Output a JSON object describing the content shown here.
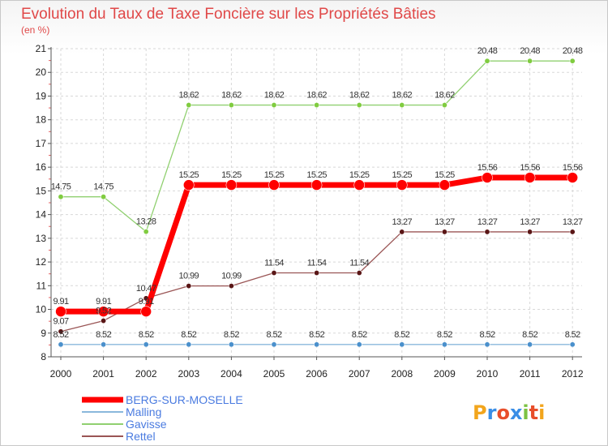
{
  "title": "Evolution du Taux de Taxe Foncière sur les Propriétés Bâties",
  "unit_label": "(en %)",
  "logo": {
    "letters": [
      "P",
      "r",
      "o",
      "x",
      "i",
      "t",
      "i"
    ],
    "colors": [
      "#f2a51c",
      "#3a8ee6",
      "#e84e2a",
      "#3a8ee6",
      "#7cc242",
      "#e84e2a",
      "#f2a51c"
    ]
  },
  "chart_data": {
    "type": "line",
    "title": "Evolution du Taux de Taxe Foncière sur les Propriétés Bâties",
    "ylabel": "(en %)",
    "ylim": [
      8,
      21
    ],
    "yticks": [
      8,
      9,
      10,
      11,
      12,
      13,
      14,
      15,
      16,
      17,
      18,
      19,
      20,
      21
    ],
    "x": [
      "2000",
      "2001",
      "2002",
      "2003",
      "2004",
      "2005",
      "2006",
      "2007",
      "2008",
      "2009",
      "2010",
      "2011",
      "2012"
    ],
    "grid": true,
    "legend_position": "bottom-left",
    "series": [
      {
        "name": "Gavisse",
        "color": "#90d070",
        "marker": "#80cc40",
        "width": 1.3,
        "radius": 3.2,
        "values": [
          14.75,
          14.75,
          13.28,
          18.62,
          18.62,
          18.62,
          18.62,
          18.62,
          18.62,
          18.62,
          20.48,
          20.48,
          20.48
        ],
        "labels": [
          "14.75",
          "14.75",
          "13.28",
          "18.62",
          "18.62",
          "18.62",
          "18.62",
          "18.62",
          "18.62",
          "18.62",
          "20.48",
          "20.48",
          "20.48"
        ]
      },
      {
        "name": "Rettel",
        "color": "#9a5555",
        "marker": "#5a1616",
        "width": 1.3,
        "radius": 3.2,
        "values": [
          9.07,
          9.52,
          10.47,
          10.99,
          10.99,
          11.54,
          11.54,
          11.54,
          13.27,
          13.27,
          13.27,
          13.27,
          13.27
        ],
        "labels": [
          "9.07",
          "9.52",
          "10.47",
          "10.99",
          "10.99",
          "11.54",
          "11.54",
          "11.54",
          "13.27",
          "13.27",
          "13.27",
          "13.27",
          "13.27"
        ]
      },
      {
        "name": "Malling",
        "color": "#8ab8dc",
        "marker": "#4a90cc",
        "width": 1.3,
        "radius": 3.2,
        "values": [
          8.52,
          8.52,
          8.52,
          8.52,
          8.52,
          8.52,
          8.52,
          8.52,
          8.52,
          8.52,
          8.52,
          8.52,
          8.52
        ],
        "labels": [
          "8.52",
          "8.52",
          "8.52",
          "8.52",
          "8.52",
          "8.52",
          "8.52",
          "8.52",
          "8.52",
          "8.52",
          "8.52",
          "8.52",
          "8.52"
        ]
      },
      {
        "name": "BERG-SUR-MOSELLE",
        "color": "#ff0000",
        "marker": "#ff0000",
        "width": 7,
        "radius": 6.5,
        "values": [
          9.91,
          9.91,
          9.91,
          15.25,
          15.25,
          15.25,
          15.25,
          15.25,
          15.25,
          15.25,
          15.56,
          15.56,
          15.56
        ],
        "labels": [
          "9.91",
          "9.91",
          "9.91",
          "15.25",
          "15.25",
          "15.25",
          "15.25",
          "15.25",
          "15.25",
          "15.25",
          "15.56",
          "15.56",
          "15.56"
        ]
      }
    ],
    "legend": [
      {
        "name": "BERG-SUR-MOSELLE",
        "color": "#ff0000",
        "text_color": "#4a7be0"
      },
      {
        "name": "Malling",
        "color": "#8ab8dc",
        "text_color": "#4a7be0"
      },
      {
        "name": "Gavisse",
        "color": "#90d070",
        "text_color": "#4a7be0"
      },
      {
        "name": "Rettel",
        "color": "#9a5555",
        "text_color": "#4a7be0"
      }
    ]
  }
}
